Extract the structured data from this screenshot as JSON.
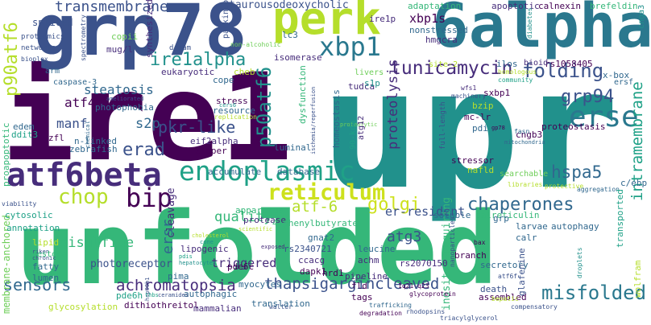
{
  "wordcloud": {
    "palette": {
      "dark_purple": "#440154",
      "purple": "#472d7b",
      "indigo": "#3b528b",
      "blue": "#31688e",
      "teal_blue": "#2a788e",
      "teal": "#21918c",
      "green_teal": "#1fa187",
      "green": "#35b779",
      "light_green": "#6ece58",
      "yellow_green": "#b5de2b",
      "yellow": "#fde725"
    },
    "words": [
      {
        "text": "ire1",
        "color": "#440154"
      },
      {
        "text": "upr",
        "color": "#21918c"
      },
      {
        "text": "unfolded",
        "color": "#35b779"
      },
      {
        "text": "grp78",
        "color": "#3b528b"
      },
      {
        "text": "6alpha",
        "color": "#2a788e"
      },
      {
        "text": "perk",
        "color": "#b5de2b"
      },
      {
        "text": "atf6beta",
        "color": "#472d7b"
      },
      {
        "text": "endoplasmic",
        "color": "#1fa187"
      },
      {
        "text": "reticulum",
        "color": "#cde11d"
      },
      {
        "text": "xbp1",
        "color": "#2a788e"
      },
      {
        "text": "tunicamycin",
        "color": "#472d7b"
      },
      {
        "text": "folding",
        "color": "#3b528b"
      },
      {
        "text": "erse",
        "color": "#2a788e"
      },
      {
        "text": "grp94",
        "color": "#3b528b"
      },
      {
        "text": "hspa5",
        "color": "#31688e"
      },
      {
        "text": "chaperones",
        "color": "#31688e"
      },
      {
        "text": "misfolded",
        "color": "#2a788e"
      },
      {
        "text": "thapsigargincleaved",
        "color": "#3b528b"
      },
      {
        "text": "achromatopsia",
        "color": "#472d7b"
      },
      {
        "text": "sensors",
        "color": "#31688e"
      },
      {
        "text": "chop",
        "color": "#b5de2b"
      },
      {
        "text": "bip",
        "color": "#440154"
      },
      {
        "text": "erad",
        "color": "#3b528b"
      },
      {
        "text": "pkr-like",
        "color": "#3b528b"
      },
      {
        "text": "ire1alpha",
        "color": "#21918c"
      },
      {
        "text": "steatosis",
        "color": "#31688e"
      },
      {
        "text": "transmembrane",
        "color": "#3b528b"
      },
      {
        "text": "p90atf6",
        "color": "#b5de2b"
      },
      {
        "text": "p50atf6",
        "color": "#21918c"
      },
      {
        "text": "atf-6",
        "color": "#b5de2b"
      },
      {
        "text": "golgi",
        "color": "#cde11d"
      },
      {
        "text": "proteolysis",
        "color": "#472d7b"
      },
      {
        "text": "intramembrane",
        "color": "#1fa187"
      },
      {
        "text": "er-resident",
        "color": "#3b528b"
      },
      {
        "text": "quality",
        "color": "#35b779"
      },
      {
        "text": "disulfide",
        "color": "#35b779"
      },
      {
        "text": "s2p",
        "color": "#31688e"
      },
      {
        "text": "atf4",
        "color": "#440154"
      },
      {
        "text": "manf",
        "color": "#3b528b"
      },
      {
        "text": "ersr",
        "color": "#31688e"
      },
      {
        "text": "atg3",
        "color": "#3b528b"
      },
      {
        "text": "xbp1s",
        "color": "#440154"
      },
      {
        "text": "cleavage",
        "color": "#472d7b"
      },
      {
        "text": "triggered",
        "color": "#472d7b"
      },
      {
        "text": "photoreceptor",
        "color": "#3b528b"
      },
      {
        "text": "inositol-requiring",
        "color": "#35b779"
      },
      {
        "text": "membrane-anchored",
        "color": "#6ece58"
      },
      {
        "text": "taurousodeoxycholic",
        "color": "#3b528b"
      },
      {
        "text": "nonstressed",
        "color": "#31688e"
      },
      {
        "text": "spliced",
        "color": "#3b528b"
      },
      {
        "text": "synthesized",
        "color": "#472d7b"
      },
      {
        "text": "parkinson",
        "color": "#3b528b"
      },
      {
        "text": "adaptation",
        "color": "#35b779"
      },
      {
        "text": "apoptotic",
        "color": "#472d7b"
      },
      {
        "text": "calnexin",
        "color": "#440154"
      },
      {
        "text": "brefeldin",
        "color": "#35b779"
      },
      {
        "text": "cnga3",
        "color": "#21918c"
      },
      {
        "text": "diabetes",
        "color": "#21918c"
      },
      {
        "text": "proteomics",
        "color": "#3b528b"
      },
      {
        "text": "networks",
        "color": "#3b528b"
      },
      {
        "text": "copii",
        "color": "#6ece58"
      },
      {
        "text": "mug/l",
        "color": "#472d7b"
      },
      {
        "text": "dream",
        "color": "#3b528b"
      },
      {
        "text": "spectrometry",
        "color": "#3b528b"
      },
      {
        "text": "non-alcoholic",
        "color": "#6ece58"
      },
      {
        "text": "lc3",
        "color": "#31688e"
      },
      {
        "text": "ire1p",
        "color": "#472d7b"
      },
      {
        "text": "hmgcra",
        "color": "#472d7b"
      },
      {
        "text": "isomerase",
        "color": "#472d7b"
      },
      {
        "text": "tudca",
        "color": "#472d7b"
      },
      {
        "text": "eukaryotic",
        "color": "#472d7b"
      },
      {
        "text": "arm",
        "color": "#31688e"
      },
      {
        "text": "caspase-3",
        "color": "#31688e"
      },
      {
        "text": "cheb",
        "color": "#b5de2b"
      },
      {
        "text": "cope",
        "color": "#31688e"
      },
      {
        "text": "stress",
        "color": "#440154"
      },
      {
        "text": "photophobia",
        "color": "#31688e"
      },
      {
        "text": "resource",
        "color": "#31688e"
      },
      {
        "text": "replication",
        "color": "#b5de2b"
      },
      {
        "text": "ameliorated",
        "color": "#3b528b"
      },
      {
        "text": "dysfunction",
        "color": "#35b779"
      },
      {
        "text": "homeostasis",
        "color": "#31688e"
      },
      {
        "text": "s1p",
        "color": "#21918c"
      },
      {
        "text": "livers",
        "color": "#6ece58"
      },
      {
        "text": "rs1058405",
        "color": "#440154"
      },
      {
        "text": "bioid",
        "color": "#472d7b"
      },
      {
        "text": "ilos",
        "color": "#31688e"
      },
      {
        "text": "community",
        "color": "#1fa187"
      },
      {
        "text": "homologous",
        "color": "#b5de2b"
      },
      {
        "text": "x-box",
        "color": "#31688e"
      },
      {
        "text": "ersf",
        "color": "#31688e"
      },
      {
        "text": "site-2",
        "color": "#b5de2b"
      },
      {
        "text": "wfs1",
        "color": "#472d7b"
      },
      {
        "text": "machinery",
        "color": "#3b528b"
      },
      {
        "text": "sxbp1",
        "color": "#440154"
      },
      {
        "text": "proteolytic",
        "color": "#6ece58"
      },
      {
        "text": "atg12",
        "color": "#472d7b"
      },
      {
        "text": "90-kda",
        "color": "#1fa187"
      },
      {
        "text": "mc-lr",
        "color": "#440154"
      },
      {
        "text": "pdi",
        "color": "#31688e"
      },
      {
        "text": "gp78",
        "color": "#440154"
      },
      {
        "text": "bzip",
        "color": "#b5de2b"
      },
      {
        "text": "full-length",
        "color": "#3b528b"
      },
      {
        "text": "cngb3",
        "color": "#440154"
      },
      {
        "text": "proteostasis",
        "color": "#440154"
      },
      {
        "text": "chemical",
        "color": "#31688e"
      },
      {
        "text": "cers6",
        "color": "#21918c"
      },
      {
        "text": "edem",
        "color": "#31688e"
      },
      {
        "text": "ddit3",
        "color": "#1fa187"
      },
      {
        "text": "zfl",
        "color": "#440154"
      },
      {
        "text": "proapoptotic",
        "color": "#35b779"
      },
      {
        "text": "n-linked",
        "color": "#31688e"
      },
      {
        "text": "eif2alpha",
        "color": "#472d7b"
      },
      {
        "text": "zebrafish",
        "color": "#31688e"
      },
      {
        "text": "zipper",
        "color": "#440154"
      },
      {
        "text": "luminal",
        "color": "#31688e"
      },
      {
        "text": "ischemia/reperfusion",
        "color": "#3b528b"
      },
      {
        "text": "mitochondria",
        "color": "#31688e"
      },
      {
        "text": "fasn",
        "color": "#31688e"
      },
      {
        "text": "accumulate",
        "color": "#31688e"
      },
      {
        "text": "database",
        "color": "#31688e"
      },
      {
        "text": "stressor",
        "color": "#440154"
      },
      {
        "text": "nafld",
        "color": "#b5de2b"
      },
      {
        "text": "searchable",
        "color": "#6ece58"
      },
      {
        "text": "libraries",
        "color": "#b5de2b"
      },
      {
        "text": "protective",
        "color": "#b5de2b"
      },
      {
        "text": "aggregation",
        "color": "#31688e"
      },
      {
        "text": "c/ebp",
        "color": "#31688e"
      },
      {
        "text": "viability",
        "color": "#3b528b"
      },
      {
        "text": "cytosolic",
        "color": "#1fa187"
      },
      {
        "text": "annotation",
        "color": "#1fa187"
      },
      {
        "text": "apparatus",
        "color": "#35b779"
      },
      {
        "text": "protease",
        "color": "#472d7b"
      },
      {
        "text": "4-phenylbutyrate",
        "color": "#35b779"
      },
      {
        "text": "soluble",
        "color": "#31688e"
      },
      {
        "text": "calreticulin",
        "color": "#35b779"
      },
      {
        "text": "transported",
        "color": "#1fa187"
      },
      {
        "text": "cholesterol",
        "color": "#b5de2b"
      },
      {
        "text": "scientific",
        "color": "#b5de2b"
      },
      {
        "text": "nanoparticles",
        "color": "#3b528b"
      },
      {
        "text": "bax",
        "color": "#440154"
      },
      {
        "text": "grp",
        "color": "#31688e"
      },
      {
        "text": "autophagy",
        "color": "#31688e"
      },
      {
        "text": "larvae",
        "color": "#31688e"
      },
      {
        "text": "calr",
        "color": "#31688e"
      },
      {
        "text": "lipid",
        "color": "#b5de2b"
      },
      {
        "text": "riken",
        "color": "#3b528b"
      },
      {
        "text": "chronic",
        "color": "#3b528b"
      },
      {
        "text": "restore",
        "color": "#35b779"
      },
      {
        "text": "fatty",
        "color": "#31688e"
      },
      {
        "text": "lumen",
        "color": "#31688e"
      },
      {
        "text": "cone",
        "color": "#21918c"
      },
      {
        "text": "exposed",
        "color": "#472d7b"
      },
      {
        "text": "gnat2",
        "color": "#31688e"
      },
      {
        "text": "rs2340721",
        "color": "#3b528b"
      },
      {
        "text": "ccacg",
        "color": "#472d7b"
      },
      {
        "text": "rs2070150",
        "color": "#472d7b"
      },
      {
        "text": "leucine",
        "color": "#31688e"
      },
      {
        "text": "achm",
        "color": "#472d7b"
      },
      {
        "text": "branch",
        "color": "#440154"
      },
      {
        "text": "secretory",
        "color": "#31688e"
      },
      {
        "text": "glafenine",
        "color": "#3b528b"
      },
      {
        "text": "wolfram",
        "color": "#b5de2b"
      },
      {
        "text": "lipogenic",
        "color": "#472d7b"
      },
      {
        "text": "pdis",
        "color": "#1fa187"
      },
      {
        "text": "hepatocytes",
        "color": "#21918c"
      },
      {
        "text": "pde6c",
        "color": "#440154"
      },
      {
        "text": "dapk1",
        "color": "#440154"
      },
      {
        "text": "hrd1",
        "color": "#440154"
      },
      {
        "text": "fld",
        "color": "#440154"
      },
      {
        "text": "tags",
        "color": "#440154"
      },
      {
        "text": "1q21-q23",
        "color": "#440154"
      },
      {
        "text": "glycoprotein",
        "color": "#440154"
      },
      {
        "text": "pipeline",
        "color": "#472d7b"
      },
      {
        "text": "atf6f",
        "color": "#3b528b"
      },
      {
        "text": "death",
        "color": "#3b528b"
      },
      {
        "text": "assembled",
        "color": "#440154"
      },
      {
        "text": "bepatic",
        "color": "#b5de2b"
      },
      {
        "text": "compensatory",
        "color": "#3b528b"
      },
      {
        "text": "droplets",
        "color": "#21918c"
      },
      {
        "text": "pima",
        "color": "#31688e"
      },
      {
        "text": "myocytes",
        "color": "#31688e"
      },
      {
        "text": "pde6h",
        "color": "#1fa187"
      },
      {
        "text": "autophagic",
        "color": "#31688e"
      },
      {
        "text": "ceramides",
        "color": "#3b528b"
      },
      {
        "text": "hsp90b1",
        "color": "#3b528b"
      },
      {
        "text": "thbs",
        "color": "#1fa187"
      },
      {
        "text": "walter",
        "color": "#3b528b"
      },
      {
        "text": "dithiothreitol",
        "color": "#440154"
      },
      {
        "text": "mammalian",
        "color": "#472d7b"
      },
      {
        "text": "translation",
        "color": "#31688e"
      },
      {
        "text": "glycosylation",
        "color": "#b5de2b"
      },
      {
        "text": "trafficking",
        "color": "#31688e"
      },
      {
        "text": "degradation",
        "color": "#440154"
      },
      {
        "text": "rhodopsins",
        "color": "#3b528b"
      },
      {
        "text": "triacylglycerol",
        "color": "#3b528b"
      },
      {
        "text": "bioplex",
        "color": "#3b528b"
      }
    ]
  }
}
